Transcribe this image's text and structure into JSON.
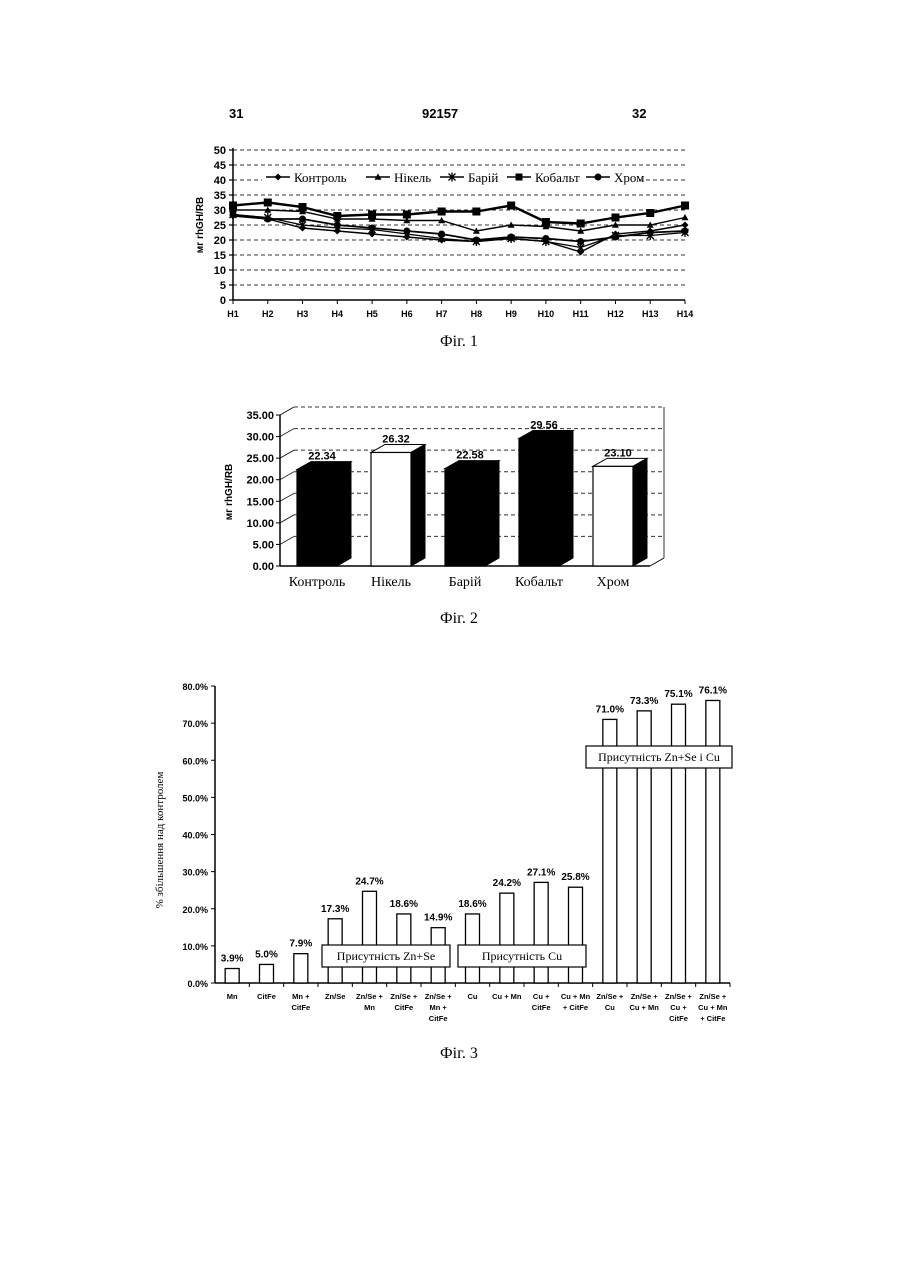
{
  "header": {
    "left": "31",
    "center": "92157",
    "right": "32"
  },
  "captions": {
    "fig1": "Фіг. 1",
    "fig2": "Фіг. 2",
    "fig3": "Фіг. 3"
  },
  "chart_data": [
    {
      "type": "line",
      "ylabel": "мг rhGH/RB",
      "ylim": [
        0,
        50
      ],
      "yticks": [
        0,
        5,
        10,
        15,
        20,
        25,
        30,
        35,
        40,
        45,
        50
      ],
      "categories": [
        "H1",
        "H2",
        "H3",
        "H4",
        "H5",
        "H6",
        "H7",
        "H8",
        "H9",
        "H10",
        "H11",
        "H12",
        "H13",
        "H14"
      ],
      "legend_position": "top",
      "grid": true,
      "series": [
        {
          "name": "Контроль",
          "marker": "diamond",
          "values": [
            28,
            27,
            24,
            23,
            22,
            21,
            20,
            19.5,
            20.5,
            19.5,
            16,
            22,
            23,
            25
          ]
        },
        {
          "name": "Нікель",
          "marker": "triangle",
          "values": [
            30,
            30,
            29.5,
            27,
            27,
            26.5,
            26.5,
            23,
            25,
            24.5,
            23,
            25,
            25,
            27.5
          ]
        },
        {
          "name": "Барій",
          "marker": "star",
          "values": [
            28.5,
            27.5,
            25,
            24,
            23.5,
            22,
            20.5,
            19.5,
            20.5,
            19.5,
            17.5,
            21.5,
            21.5,
            22.5
          ]
        },
        {
          "name": "Кобальт",
          "marker": "square",
          "values": [
            31.5,
            32.5,
            31,
            28,
            28.5,
            28.5,
            29.5,
            29.5,
            31.5,
            26,
            25.5,
            27.5,
            29,
            31.5
          ]
        },
        {
          "name": "Хром",
          "marker": "circle",
          "values": [
            28.5,
            27,
            27,
            25,
            24,
            23,
            22,
            20,
            21,
            20.5,
            19.5,
            21,
            22.5,
            23
          ]
        }
      ]
    },
    {
      "type": "bar",
      "ylabel": "мг rhGH/RB",
      "ylim": [
        0,
        35
      ],
      "yticks": [
        "0.00",
        "5.00",
        "10.00",
        "15.00",
        "20.00",
        "25.00",
        "30.00",
        "35.00"
      ],
      "categories": [
        "Контроль",
        "Нікель",
        "Барій",
        "Кобальт",
        "Хром"
      ],
      "values": [
        22.34,
        26.32,
        22.58,
        29.56,
        23.1
      ],
      "value_labels": [
        "22.34",
        "26.32",
        "22.58",
        "29.56",
        "23.10"
      ],
      "fills": [
        "#000000",
        "#ffffff",
        "#000000",
        "#000000",
        "#ffffff"
      ],
      "style": "3d",
      "grid": true
    },
    {
      "type": "bar",
      "ylabel": "% збільшення над контролем",
      "ylim": [
        0,
        80
      ],
      "yticks": [
        "0.0%",
        "10.0%",
        "20.0%",
        "30.0%",
        "40.0%",
        "50.0%",
        "60.0%",
        "70.0%",
        "80.0%"
      ],
      "categories": [
        [
          "Mn"
        ],
        [
          "CitFe"
        ],
        [
          "Mn +",
          "CitFe"
        ],
        [
          "Zn/Se"
        ],
        [
          "Zn/Se +",
          "Mn"
        ],
        [
          "Zn/Se +",
          "CitFe"
        ],
        [
          "Zn/Se +",
          "Mn +",
          "CitFe"
        ],
        [
          "Cu"
        ],
        [
          "Cu + Mn"
        ],
        [
          "Cu +",
          "CitFe"
        ],
        [
          "Cu + Mn",
          "+ CitFe"
        ],
        [
          "Zn/Se +",
          "Cu"
        ],
        [
          "Zn/Se +",
          "Cu + Mn"
        ],
        [
          "Zn/Se +",
          "Cu +",
          "CitFe"
        ],
        [
          "Zn/Se +",
          "Cu + Mn",
          "+ CitFe"
        ]
      ],
      "values": [
        3.9,
        5.0,
        7.9,
        17.3,
        24.7,
        18.6,
        14.9,
        18.6,
        24.2,
        27.1,
        25.8,
        71.0,
        73.3,
        75.1,
        76.1
      ],
      "value_labels": [
        "3.9%",
        "5.0%",
        "7.9%",
        "17.3%",
        "24.7%",
        "18.6%",
        "14.9%",
        "18.6%",
        "24.2%",
        "27.1%",
        "25.8%",
        "71.0%",
        "73.3%",
        "75.1%",
        "76.1%"
      ],
      "annotations": [
        "Присутність Zn+Se",
        "Присутність Cu",
        "Присутність Zn+Se і Cu"
      ]
    }
  ]
}
